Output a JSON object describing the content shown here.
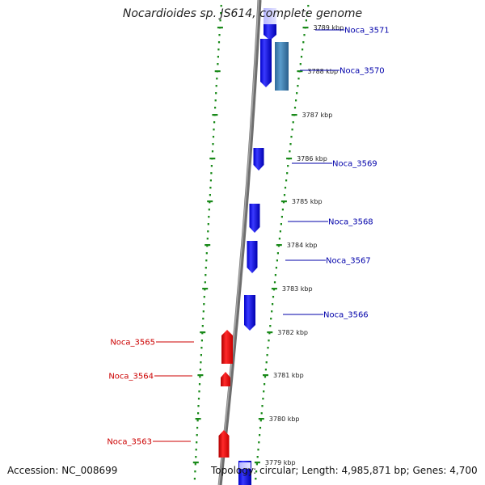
{
  "title": "Nocardioides sp. JS614, complete genome",
  "accession": "Accession: NC_008699",
  "topology": "Topology: circular; Length: 4,985,871 bp; Genes: 4,700",
  "colors": {
    "forward_gene": "#1a1aff",
    "forward_gene_light": "#c8c8ff",
    "reverse_gene": "#e81010",
    "rna_gene": "#4a87b8",
    "backbone": "#808080",
    "tick": "#1a8a1a",
    "forward_label": "#0000aa",
    "reverse_label": "#cc0000"
  },
  "ticks": [
    {
      "label": "3789 kbp"
    },
    {
      "label": "3788 kbp"
    },
    {
      "label": "3787 kbp"
    },
    {
      "label": "3786 kbp"
    },
    {
      "label": "3785 kbp"
    },
    {
      "label": "3784 kbp"
    },
    {
      "label": "3783 kbp"
    },
    {
      "label": "3782 kbp"
    },
    {
      "label": "3781 kbp"
    },
    {
      "label": "3780 kbp"
    },
    {
      "label": "3779 kbp"
    }
  ],
  "genes": [
    {
      "name": "Noca_3571",
      "strand": "forward"
    },
    {
      "name": "Noca_3570",
      "strand": "forward"
    },
    {
      "name": "Noca_3569",
      "strand": "forward"
    },
    {
      "name": "Noca_3568",
      "strand": "forward"
    },
    {
      "name": "Noca_3567",
      "strand": "forward"
    },
    {
      "name": "Noca_3566",
      "strand": "forward"
    },
    {
      "name": "Noca_3565",
      "strand": "reverse"
    },
    {
      "name": "Noca_3564",
      "strand": "reverse"
    },
    {
      "name": "Noca_3563",
      "strand": "reverse"
    }
  ]
}
